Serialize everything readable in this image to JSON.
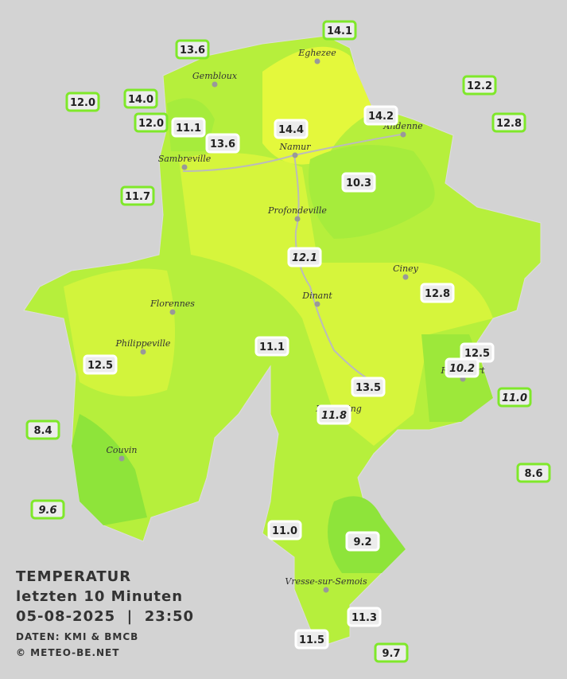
{
  "header": {
    "title": "TEMPERATUR",
    "subtitle": "letzten 10 Minuten",
    "datetime": "05-08-2025  |  23:50",
    "source": "DATEN: KMI & BMCB",
    "credit": "© METEO-BE.NET"
  },
  "towns": [
    {
      "name": "Eghezee"
    },
    {
      "name": "Gembloux"
    },
    {
      "name": "Andenne"
    },
    {
      "name": "Namur"
    },
    {
      "name": "Sambreville"
    },
    {
      "name": "Profondeville"
    },
    {
      "name": "Ciney"
    },
    {
      "name": "Dinant"
    },
    {
      "name": "Florennes"
    },
    {
      "name": "Philippeville"
    },
    {
      "name": "Rochefort"
    },
    {
      "name": "Beauraing"
    },
    {
      "name": "Couvin"
    },
    {
      "name": "Vresse-sur-Semois"
    }
  ],
  "stations": [
    {
      "label": "14.1"
    },
    {
      "label": "13.6"
    },
    {
      "label": "12.0"
    },
    {
      "label": "14.0"
    },
    {
      "label": "12.0"
    },
    {
      "label": "11.1"
    },
    {
      "label": "13.6"
    },
    {
      "label": "14.4"
    },
    {
      "label": "14.2"
    },
    {
      "label": "12.2"
    },
    {
      "label": "12.8"
    },
    {
      "label": "10.3"
    },
    {
      "label": "11.7"
    },
    {
      "label": "12.1",
      "italic": true
    },
    {
      "label": "12.8"
    },
    {
      "label": "11.1"
    },
    {
      "label": "12.5"
    },
    {
      "label": "12.5"
    },
    {
      "label": "10.2",
      "italic": true
    },
    {
      "label": "13.5"
    },
    {
      "label": "11.8",
      "italic": true
    },
    {
      "label": "11.0",
      "italic": true
    },
    {
      "label": "8.4"
    },
    {
      "label": "8.6"
    },
    {
      "label": "9.6",
      "italic": true
    },
    {
      "label": "11.0"
    },
    {
      "label": "9.2"
    },
    {
      "label": "11.3"
    },
    {
      "label": "11.5"
    },
    {
      "label": "9.7"
    }
  ]
}
